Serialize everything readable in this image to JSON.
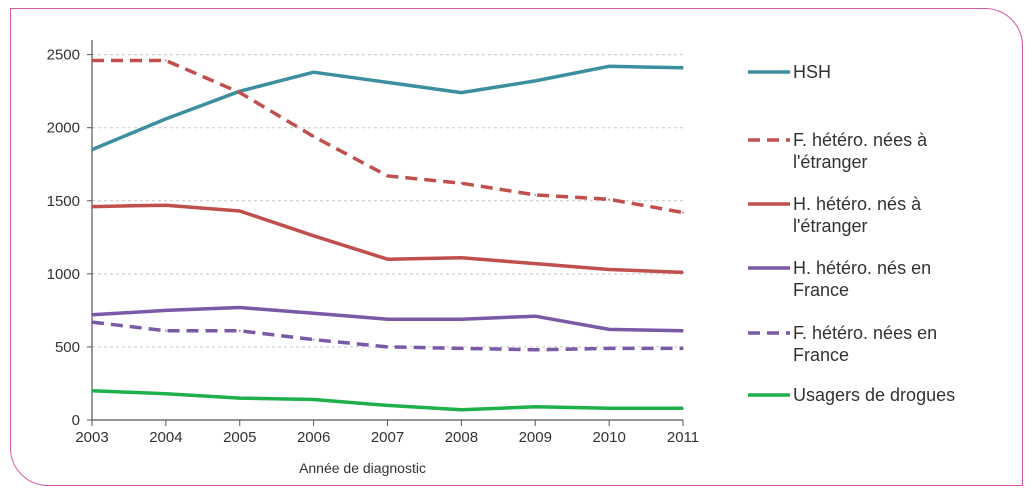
{
  "chart_data": {
    "type": "line",
    "title": "",
    "xlabel": "Année de diagnostic",
    "ylabel": "",
    "x": [
      "2003",
      "2004",
      "2005",
      "2006",
      "2007",
      "2008",
      "2009",
      "2010",
      "2011"
    ],
    "yticks": [
      "0",
      "500",
      "1000",
      "1500",
      "2000",
      "2500"
    ],
    "ylim": [
      0,
      2600
    ],
    "grid": true,
    "legend_position": "right",
    "series": [
      {
        "name": "HSH",
        "legend": [
          "HSH"
        ],
        "color": "#3d8fa0",
        "dash": false,
        "values": [
          1850,
          2060,
          2250,
          2380,
          2310,
          2240,
          2320,
          2420,
          2410
        ]
      },
      {
        "name": "F. hétéro. nées à l'étranger",
        "legend": [
          "F. hétéro. nées à",
          "l'étranger"
        ],
        "color": "#c0504d",
        "dash": true,
        "values": [
          2460,
          2460,
          2240,
          1940,
          1670,
          1620,
          1540,
          1510,
          1420
        ]
      },
      {
        "name": "H. hétéro. nés à l'étranger",
        "legend": [
          "H. hétéro. nés à",
          "l'étranger"
        ],
        "color": "#c0504d",
        "dash": false,
        "values": [
          1460,
          1470,
          1430,
          1260,
          1100,
          1110,
          1070,
          1030,
          1010
        ]
      },
      {
        "name": "H. hétéro. nés en France",
        "legend": [
          "H. hétéro. nés en",
          "France"
        ],
        "color": "#7a5aa6",
        "dash": false,
        "values": [
          720,
          750,
          770,
          730,
          690,
          690,
          710,
          620,
          610
        ]
      },
      {
        "name": "F. hétéro. nées en France",
        "legend": [
          "F. hétéro. nées en",
          "France"
        ],
        "color": "#7a5aa6",
        "dash": true,
        "values": [
          670,
          610,
          610,
          550,
          500,
          490,
          480,
          490,
          490
        ]
      },
      {
        "name": "Usagers de drogues",
        "legend": [
          "Usagers de drogues"
        ],
        "color": "#1eb04b",
        "dash": false,
        "values": [
          200,
          180,
          150,
          140,
          100,
          70,
          90,
          80,
          80
        ]
      }
    ]
  }
}
